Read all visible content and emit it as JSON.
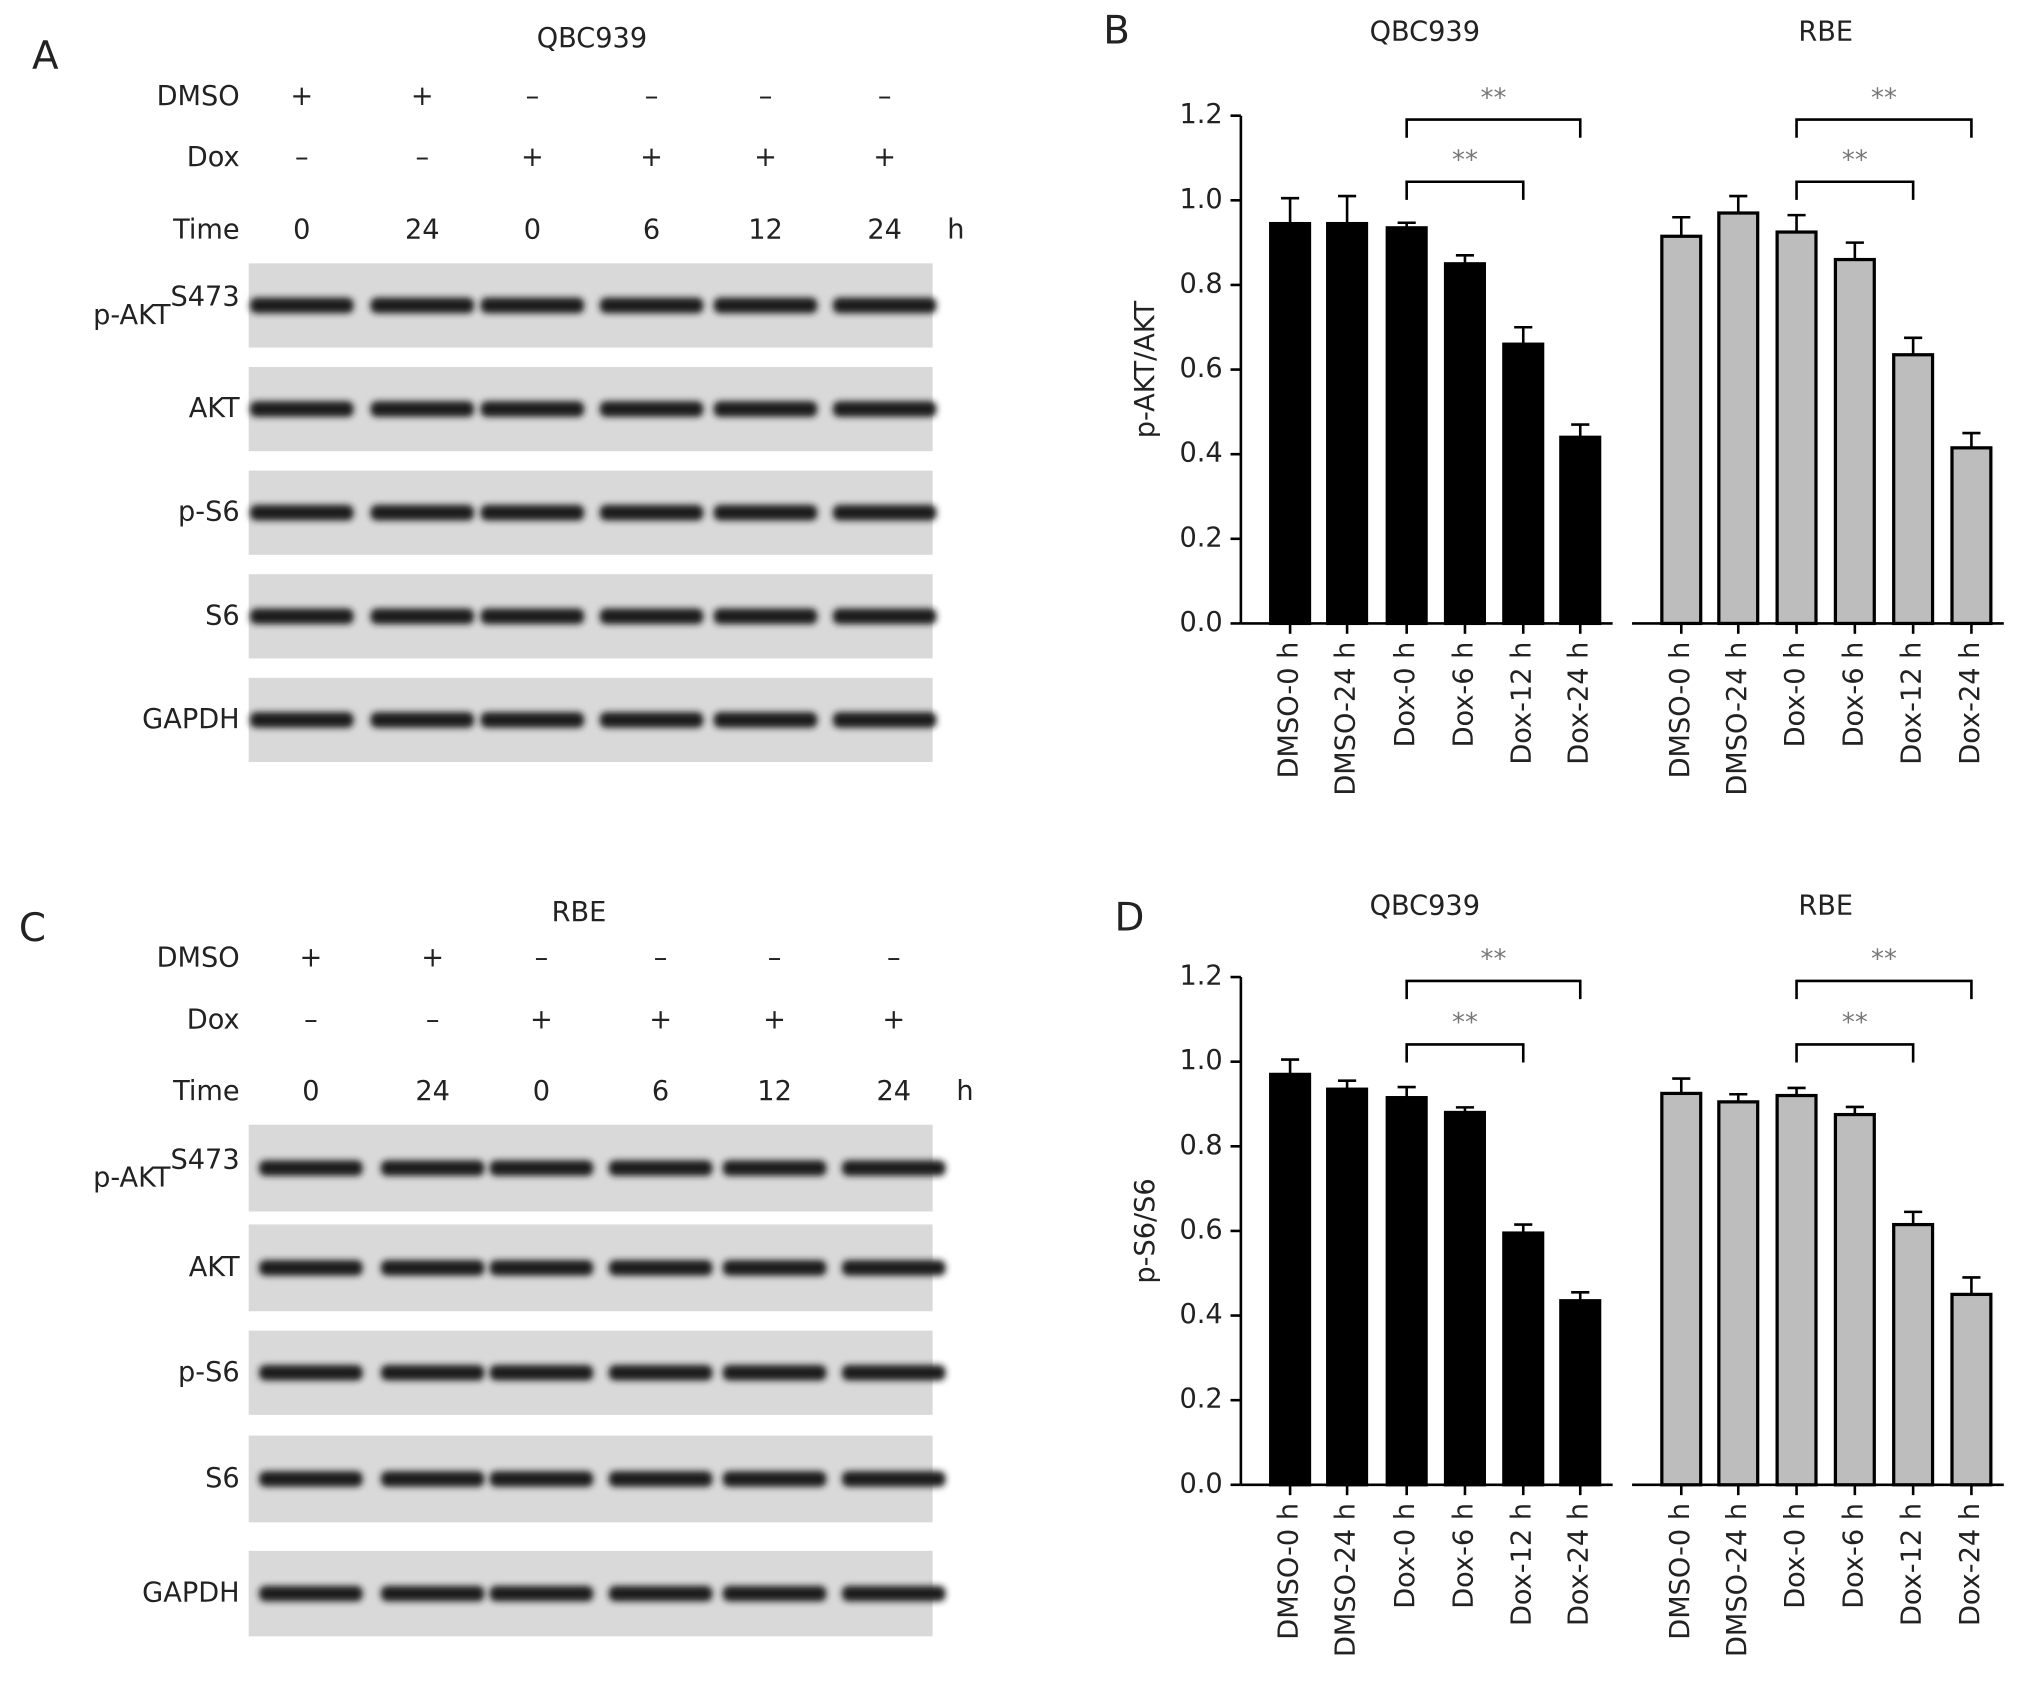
{
  "blots": [
    {
      "panel": "A",
      "title": "QBC939",
      "rows": [
        {
          "label": "DMSO",
          "values": [
            "+",
            "+",
            "–",
            "–",
            "–",
            "–"
          ]
        },
        {
          "label": "Dox",
          "values": [
            "–",
            "–",
            "+",
            "+",
            "+",
            "+"
          ]
        },
        {
          "label": "Time",
          "values": [
            "0",
            "24",
            "0",
            "6",
            "12",
            "24"
          ]
        }
      ],
      "unit": "h",
      "bands": [
        {
          "label": "p-AKT",
          "superscript": "S473"
        },
        {
          "label": "AKT"
        },
        {
          "label": "p-S6"
        },
        {
          "label": "S6"
        },
        {
          "label": "GAPDH"
        }
      ]
    },
    {
      "panel": "C",
      "title": "RBE",
      "rows": [
        {
          "label": "DMSO",
          "values": [
            "+",
            "+",
            "–",
            "–",
            "–",
            "–"
          ]
        },
        {
          "label": "Dox",
          "values": [
            "–",
            "–",
            "+",
            "+",
            "+",
            "+"
          ]
        },
        {
          "label": "Time",
          "values": [
            "0",
            "24",
            "0",
            "6",
            "12",
            "24"
          ]
        }
      ],
      "unit": "h",
      "bands": [
        {
          "label": "p-AKT",
          "superscript": "S473"
        },
        {
          "label": "AKT"
        },
        {
          "label": "p-S6"
        },
        {
          "label": "S6"
        },
        {
          "label": "GAPDH"
        }
      ]
    }
  ],
  "chart_data": [
    {
      "type": "bar",
      "panel": "B",
      "y_label": "p-AKT/AKT",
      "ylim": [
        0,
        1.2
      ],
      "yticks": [
        {
          "value": 0,
          "label": "0.0"
        },
        0.2,
        0.4,
        0.6,
        0.8,
        {
          "value": 1,
          "label": "1.0"
        },
        1.2
      ],
      "groups": [
        {
          "name": "QBC939",
          "color": "#000000",
          "categories": [
            "DMSO-0 h",
            "DMSO-24 h",
            "Dox-0 h",
            "Dox-6 h",
            "Dox-12 h",
            "Dox-24 h"
          ],
          "values": [
            0.945,
            0.945,
            0.935,
            0.85,
            0.66,
            0.44
          ],
          "errors": [
            0.06,
            0.065,
            0.012,
            0.02,
            0.04,
            0.03
          ],
          "annotations": [
            "**",
            "**"
          ]
        },
        {
          "name": "RBE",
          "color": "#bdbdbd",
          "categories": [
            "DMSO-0 h",
            "DMSO-24 h",
            "Dox-0 h",
            "Dox-6 h",
            "Dox-12 h",
            "Dox-24 h"
          ],
          "values": [
            0.915,
            0.97,
            0.925,
            0.86,
            0.635,
            0.415
          ],
          "errors": [
            0.045,
            0.04,
            0.04,
            0.04,
            0.04,
            0.035
          ],
          "annotations": [
            "**",
            "**"
          ]
        }
      ]
    },
    {
      "type": "bar",
      "panel": "D",
      "y_label": "p-S6/S6",
      "ylim": [
        0,
        1.2
      ],
      "yticks": [
        {
          "value": 0,
          "label": "0.0"
        },
        0.2,
        0.4,
        0.6,
        0.8,
        {
          "value": 1,
          "label": "1.0"
        },
        1.2
      ],
      "groups": [
        {
          "name": "QBC939",
          "color": "#000000",
          "categories": [
            "DMSO-0 h",
            "DMSO-24 h",
            "Dox-0 h",
            "Dox-6 h",
            "Dox-12 h",
            "Dox-24 h"
          ],
          "values": [
            0.97,
            0.935,
            0.915,
            0.88,
            0.595,
            0.435
          ],
          "errors": [
            0.035,
            0.02,
            0.025,
            0.012,
            0.02,
            0.02
          ],
          "annotations": [
            "**",
            "**"
          ]
        },
        {
          "name": "RBE",
          "color": "#bdbdbd",
          "categories": [
            "DMSO-0 h",
            "DMSO-24 h",
            "Dox-0 h",
            "Dox-6 h",
            "Dox-12 h",
            "Dox-24 h"
          ],
          "values": [
            0.925,
            0.905,
            0.92,
            0.875,
            0.615,
            0.45
          ],
          "errors": [
            0.035,
            0.018,
            0.018,
            0.018,
            0.03,
            0.04
          ],
          "annotations": [
            "**",
            "**"
          ]
        }
      ]
    }
  ]
}
